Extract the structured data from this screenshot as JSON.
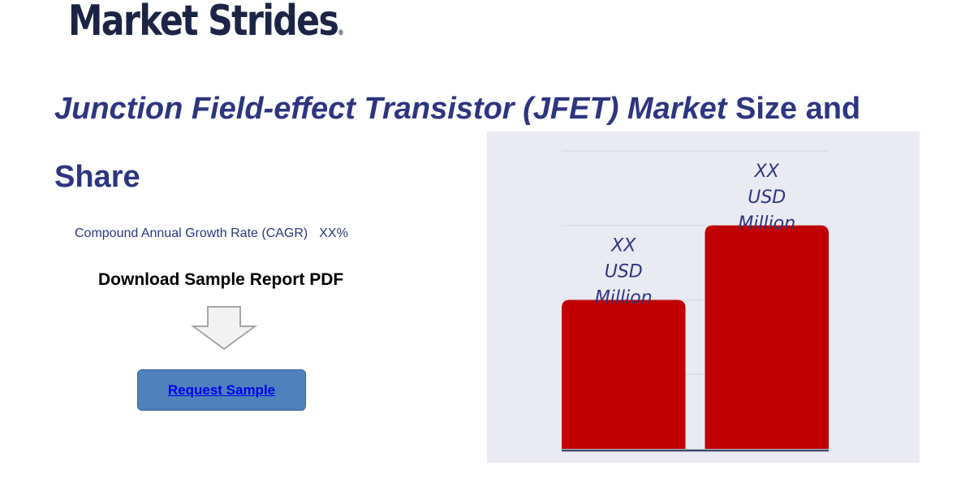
{
  "logo": {
    "text": "Market Strides",
    "registered": "®"
  },
  "title": {
    "italic_part": "Junction Field-effect Transistor (JFET) Market",
    "rest": " Size and Share"
  },
  "cagr": {
    "label": "Compound Annual Growth Rate (CAGR)",
    "value": "XX%"
  },
  "download": {
    "label": "Download Sample Report PDF",
    "icon": "down-arrow-icon"
  },
  "request_button": {
    "label": "Request Sample"
  },
  "colors": {
    "bar": "#c00000",
    "title": "#2e3580",
    "chart_bg": "#eaeaf2",
    "button": "#4f81bd"
  },
  "chart_data": {
    "type": "bar",
    "categories": [
      "",
      ""
    ],
    "values": [
      2,
      3
    ],
    "data_labels": [
      [
        "XX",
        "USD",
        "Million"
      ],
      [
        "XX",
        "USD",
        "Million"
      ]
    ],
    "ylim": [
      0,
      4
    ],
    "grid": true,
    "title": "",
    "xlabel": "",
    "ylabel": ""
  }
}
